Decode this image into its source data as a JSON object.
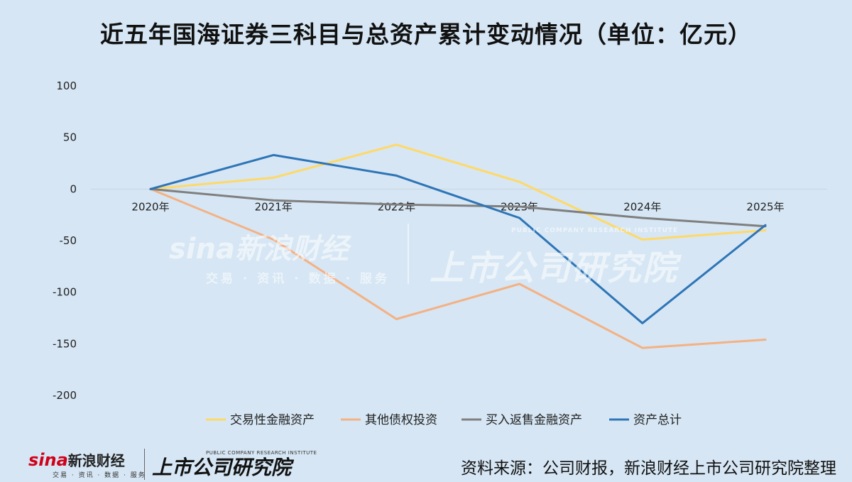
{
  "title": "近五年国海证券三科目与总资产累计变动情况（单位：亿元）",
  "chart_data": {
    "type": "line",
    "categories": [
      "2020年",
      "2021年",
      "2022年",
      "2023年",
      "2024年",
      "2025年"
    ],
    "ylim": [
      -200,
      100
    ],
    "yticks": [
      100,
      50,
      0,
      -50,
      -100,
      -150,
      -200
    ],
    "grid": false,
    "legend_position": "bottom",
    "series": [
      {
        "name": "交易性金融资产",
        "color": "#ffd966",
        "values": [
          0,
          11,
          43,
          7,
          -49,
          -40
        ]
      },
      {
        "name": "其他债权投资",
        "color": "#f4b183",
        "values": [
          0,
          -49,
          -126,
          -92,
          -154,
          -146
        ]
      },
      {
        "name": "买入返售金融资产",
        "color": "#7f7f7f",
        "values": [
          0,
          -11,
          -15,
          -17,
          -28,
          -36
        ]
      },
      {
        "name": "资产总计",
        "color": "#2e75b6",
        "values": [
          0,
          33,
          13,
          -28,
          -130,
          -35
        ]
      }
    ]
  },
  "watermark": {
    "brand": "sina新浪财经",
    "brand_sub": "交易 · 资讯 · 数据 · 服务",
    "institute": "上市公司研究院",
    "institute_en": "PUBLIC COMPANY RESEARCH INSTITUTE"
  },
  "footer": {
    "brand_latin": "sina",
    "brand_cn": "新浪财经",
    "brand_sub": "交易 · 资讯 · 数据 · 服务",
    "institute": "上市公司研究院",
    "institute_en": "PUBLIC COMPANY RESEARCH INSTITUTE",
    "source": "资料来源：公司财报，新浪财经上市公司研究院整理"
  }
}
